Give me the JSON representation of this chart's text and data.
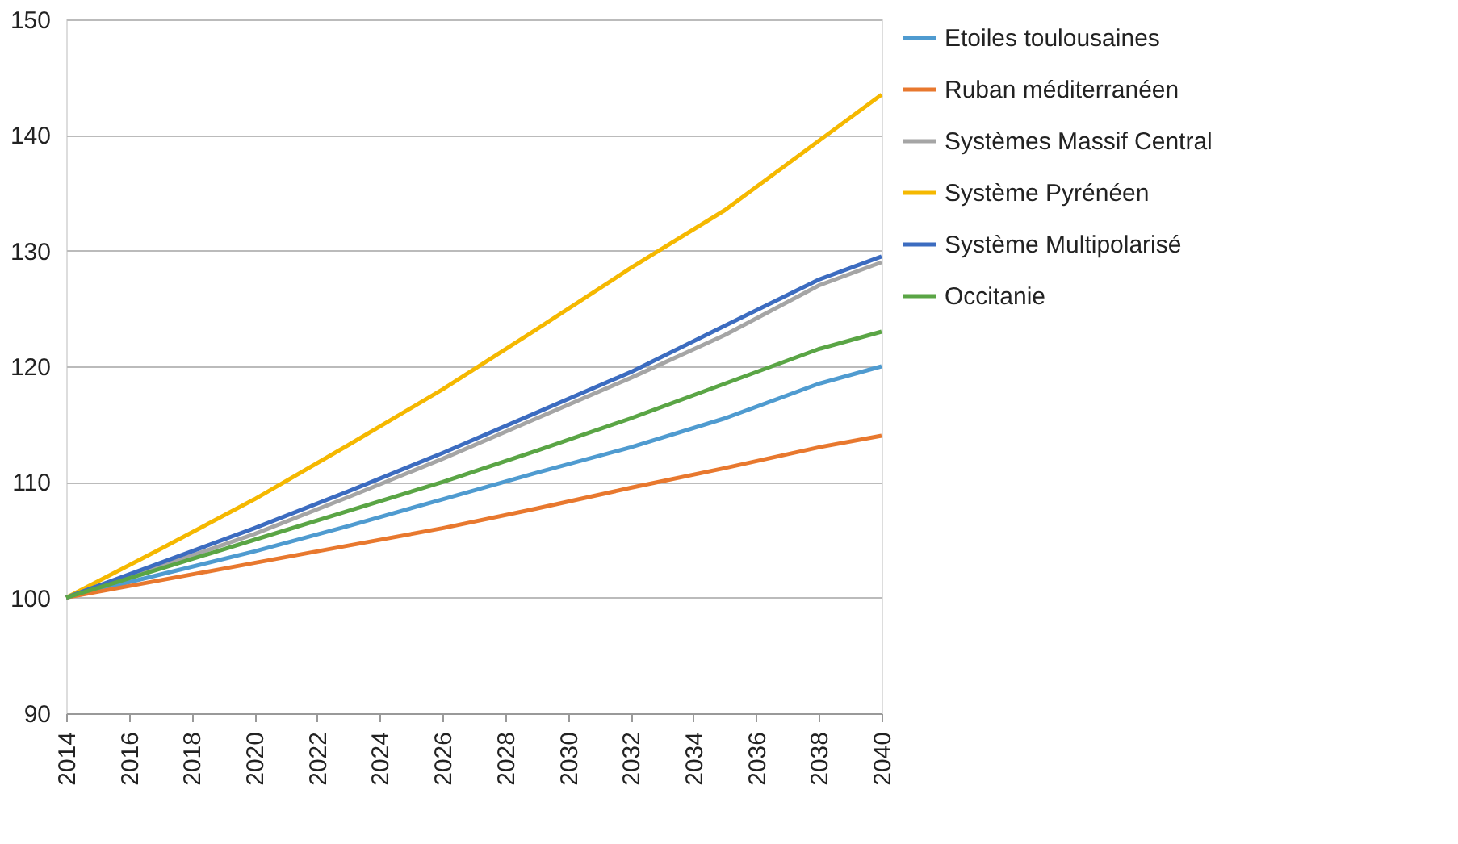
{
  "chart_data": {
    "type": "line",
    "x": [
      2014,
      2017,
      2020,
      2023,
      2026,
      2029,
      2032,
      2035,
      2038,
      2040
    ],
    "xlim": [
      2014,
      2040
    ],
    "xticks": [
      2014,
      2016,
      2018,
      2020,
      2022,
      2024,
      2026,
      2028,
      2030,
      2032,
      2034,
      2036,
      2038,
      2040
    ],
    "ylim": [
      90,
      150
    ],
    "yticks": [
      90,
      100,
      110,
      120,
      130,
      140,
      150
    ],
    "grid": "y",
    "legend": "right",
    "marker": "none",
    "line_style": "solid",
    "series": [
      {
        "name": "Etoiles toulousaines",
        "color": "#4f9bd0",
        "values": [
          100,
          102,
          104,
          106.2,
          108.5,
          110.8,
          113,
          115.5,
          118.5,
          120
        ]
      },
      {
        "name": "Ruban méditerranéen",
        "color": "#e8782e",
        "values": [
          100,
          101.5,
          103,
          104.5,
          106,
          107.7,
          109.5,
          111.2,
          113,
          114
        ]
      },
      {
        "name": "Systèmes Massif Central",
        "color": "#a5a5a5",
        "values": [
          100,
          102.7,
          105.5,
          108.7,
          112,
          115.5,
          119,
          122.7,
          127,
          129
        ]
      },
      {
        "name": "Système Pyrénéen",
        "color": "#f5b800",
        "values": [
          100,
          104.2,
          108.5,
          113.2,
          118,
          123.2,
          128.5,
          133.5,
          139.5,
          143.5
        ]
      },
      {
        "name": "Système Multipolarisé",
        "color": "#3c6cc0",
        "values": [
          100,
          103,
          106,
          109.2,
          112.5,
          116,
          119.5,
          123.5,
          127.5,
          129.5
        ]
      },
      {
        "name": "Occitanie",
        "color": "#5aa545",
        "values": [
          100,
          102.5,
          105,
          107.5,
          110,
          112.7,
          115.5,
          118.5,
          121.5,
          123
        ]
      }
    ]
  }
}
